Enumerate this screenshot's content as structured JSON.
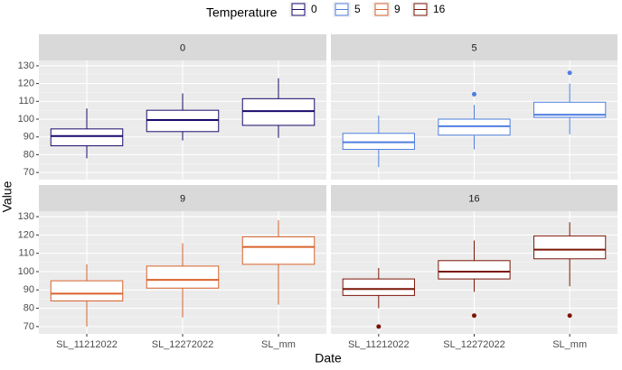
{
  "chart_data": {
    "type": "boxplot",
    "xlabel": "Date",
    "ylabel": "Value",
    "legend": {
      "title": "Temperature",
      "position": "top",
      "entries": [
        "0",
        "5",
        "9",
        "16"
      ]
    },
    "categories": [
      "SL_11212022",
      "SL_12272022",
      "SL_mm"
    ],
    "ylim": [
      66,
      133
    ],
    "yticks": [
      70,
      80,
      90,
      100,
      110,
      120,
      130
    ],
    "grid": true,
    "colors": {
      "0": "#1a0a6b",
      "5": "#4f7fe0",
      "9": "#d9622b",
      "16": "#7a1505",
      "panel_bg": "#ebebeb",
      "strip_bg": "#d9d9d9",
      "grid_major": "#ffffff"
    },
    "panels": [
      {
        "label": "0",
        "boxes": [
          {
            "category": "SL_11212022",
            "min": 78,
            "q1": 85,
            "median": 90.5,
            "q3": 94.5,
            "max": 106,
            "outliers": []
          },
          {
            "category": "SL_12272022",
            "min": 88,
            "q1": 93,
            "median": 99.5,
            "q3": 105,
            "max": 114.5,
            "outliers": []
          },
          {
            "category": "SL_mm",
            "min": 89.5,
            "q1": 96.5,
            "median": 104.5,
            "q3": 111.5,
            "max": 123,
            "outliers": []
          }
        ]
      },
      {
        "label": "5",
        "boxes": [
          {
            "category": "SL_11212022",
            "min": 73,
            "q1": 83,
            "median": 87,
            "q3": 92,
            "max": 102,
            "outliers": []
          },
          {
            "category": "SL_12272022",
            "min": 83,
            "q1": 91,
            "median": 96,
            "q3": 100,
            "max": 108,
            "outliers": [
              114
            ]
          },
          {
            "category": "SL_mm",
            "min": 91.5,
            "q1": 101,
            "median": 102.5,
            "q3": 109.5,
            "max": 120,
            "outliers": [
              126
            ]
          }
        ]
      },
      {
        "label": "9",
        "boxes": [
          {
            "category": "SL_11212022",
            "min": 70,
            "q1": 84,
            "median": 88,
            "q3": 95,
            "max": 104,
            "outliers": []
          },
          {
            "category": "SL_12272022",
            "min": 75,
            "q1": 91,
            "median": 95.5,
            "q3": 103,
            "max": 115.5,
            "outliers": []
          },
          {
            "category": "SL_mm",
            "min": 82,
            "q1": 104,
            "median": 113.5,
            "q3": 119,
            "max": 128,
            "outliers": []
          }
        ]
      },
      {
        "label": "16",
        "boxes": [
          {
            "category": "SL_11212022",
            "min": 80,
            "q1": 87,
            "median": 90.5,
            "q3": 96,
            "max": 102,
            "outliers": [
              70
            ]
          },
          {
            "category": "SL_12272022",
            "min": 89,
            "q1": 96,
            "median": 100,
            "q3": 106,
            "max": 117,
            "outliers": [
              76
            ]
          },
          {
            "category": "SL_mm",
            "min": 92,
            "q1": 107,
            "median": 112,
            "q3": 119.5,
            "max": 127,
            "outliers": [
              76
            ]
          }
        ]
      }
    ]
  }
}
